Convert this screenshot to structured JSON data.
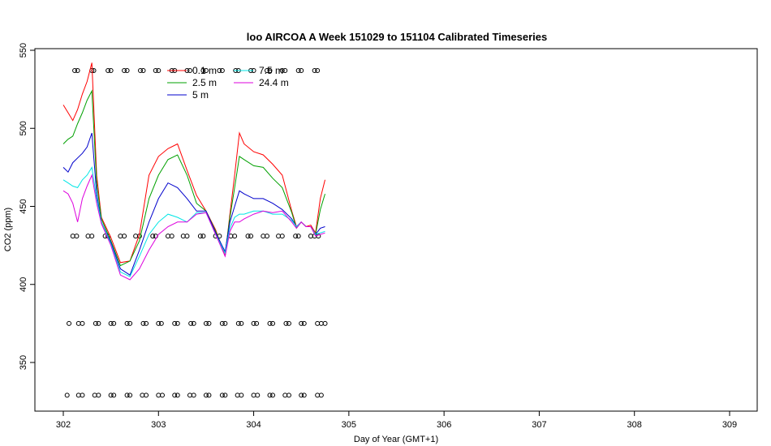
{
  "chart_data": {
    "type": "line",
    "title": "loo AIRCOA A  Week 151029 to 151104  Calibrated Timeseries",
    "xlabel": "Day of Year (GMT+1)",
    "ylabel": "CO2 (ppm)",
    "xlim": [
      301.8,
      309.3
    ],
    "ylim": [
      320,
      552
    ],
    "x_ticks": [
      302,
      303,
      304,
      305,
      306,
      307,
      308,
      309
    ],
    "y_ticks": [
      350,
      400,
      450,
      500,
      550
    ],
    "grid": false,
    "legend_position": "top-left",
    "series": [
      {
        "name": "0.1 m",
        "color": "#ff0000",
        "points": [
          [
            302.0,
            515
          ],
          [
            302.05,
            510
          ],
          [
            302.1,
            505
          ],
          [
            302.15,
            512
          ],
          [
            302.2,
            522
          ],
          [
            302.25,
            530
          ],
          [
            302.3,
            542
          ],
          [
            302.35,
            470
          ],
          [
            302.4,
            443
          ],
          [
            302.5,
            430
          ],
          [
            302.6,
            414
          ],
          [
            302.7,
            415
          ],
          [
            302.8,
            432
          ],
          [
            302.9,
            470
          ],
          [
            303.0,
            482
          ],
          [
            303.1,
            487
          ],
          [
            303.2,
            490
          ],
          [
            303.3,
            473
          ],
          [
            303.4,
            457
          ],
          [
            303.5,
            447
          ],
          [
            303.6,
            435
          ],
          [
            303.7,
            418
          ],
          [
            303.75,
            445
          ],
          [
            303.8,
            470
          ],
          [
            303.85,
            497
          ],
          [
            303.9,
            490
          ],
          [
            304.0,
            485
          ],
          [
            304.1,
            483
          ],
          [
            304.2,
            477
          ],
          [
            304.3,
            470
          ],
          [
            304.4,
            447
          ],
          [
            304.45,
            437
          ],
          [
            304.5,
            440
          ],
          [
            304.55,
            437
          ],
          [
            304.6,
            438
          ],
          [
            304.65,
            433
          ],
          [
            304.7,
            455
          ],
          [
            304.75,
            467
          ]
        ]
      },
      {
        "name": "2.5 m",
        "color": "#00a000",
        "points": [
          [
            302.0,
            490
          ],
          [
            302.05,
            493
          ],
          [
            302.1,
            495
          ],
          [
            302.15,
            503
          ],
          [
            302.2,
            510
          ],
          [
            302.25,
            518
          ],
          [
            302.3,
            524
          ],
          [
            302.35,
            465
          ],
          [
            302.4,
            442
          ],
          [
            302.5,
            428
          ],
          [
            302.6,
            412
          ],
          [
            302.7,
            415
          ],
          [
            302.8,
            428
          ],
          [
            302.9,
            455
          ],
          [
            303.0,
            470
          ],
          [
            303.1,
            480
          ],
          [
            303.2,
            483
          ],
          [
            303.3,
            470
          ],
          [
            303.4,
            452
          ],
          [
            303.5,
            447
          ],
          [
            303.6,
            434
          ],
          [
            303.7,
            420
          ],
          [
            303.75,
            443
          ],
          [
            303.8,
            462
          ],
          [
            303.85,
            482
          ],
          [
            303.9,
            480
          ],
          [
            304.0,
            476
          ],
          [
            304.1,
            475
          ],
          [
            304.2,
            468
          ],
          [
            304.3,
            462
          ],
          [
            304.4,
            446
          ],
          [
            304.45,
            436
          ],
          [
            304.5,
            440
          ],
          [
            304.55,
            437
          ],
          [
            304.6,
            437
          ],
          [
            304.65,
            432
          ],
          [
            304.7,
            448
          ],
          [
            304.75,
            458
          ]
        ]
      },
      {
        "name": "5 m",
        "color": "#0000cc",
        "points": [
          [
            302.0,
            475
          ],
          [
            302.05,
            472
          ],
          [
            302.1,
            478
          ],
          [
            302.15,
            481
          ],
          [
            302.2,
            484
          ],
          [
            302.25,
            488
          ],
          [
            302.3,
            497
          ],
          [
            302.35,
            458
          ],
          [
            302.4,
            440
          ],
          [
            302.5,
            427
          ],
          [
            302.6,
            410
          ],
          [
            302.7,
            406
          ],
          [
            302.8,
            422
          ],
          [
            302.9,
            440
          ],
          [
            303.0,
            455
          ],
          [
            303.1,
            465
          ],
          [
            303.2,
            462
          ],
          [
            303.3,
            455
          ],
          [
            303.4,
            447
          ],
          [
            303.5,
            447
          ],
          [
            303.6,
            433
          ],
          [
            303.7,
            421
          ],
          [
            303.75,
            440
          ],
          [
            303.8,
            450
          ],
          [
            303.85,
            460
          ],
          [
            303.9,
            458
          ],
          [
            304.0,
            455
          ],
          [
            304.1,
            455
          ],
          [
            304.2,
            452
          ],
          [
            304.3,
            448
          ],
          [
            304.4,
            442
          ],
          [
            304.45,
            437
          ],
          [
            304.5,
            440
          ],
          [
            304.55,
            437
          ],
          [
            304.6,
            437
          ],
          [
            304.65,
            432
          ],
          [
            304.7,
            436
          ],
          [
            304.75,
            437
          ]
        ]
      },
      {
        "name": "7.5 m",
        "color": "#00e5e5",
        "points": [
          [
            302.0,
            467
          ],
          [
            302.05,
            465
          ],
          [
            302.1,
            463
          ],
          [
            302.15,
            462
          ],
          [
            302.2,
            467
          ],
          [
            302.25,
            470
          ],
          [
            302.3,
            475
          ],
          [
            302.35,
            455
          ],
          [
            302.4,
            440
          ],
          [
            302.5,
            426
          ],
          [
            302.6,
            408
          ],
          [
            302.7,
            405
          ],
          [
            302.8,
            418
          ],
          [
            302.9,
            432
          ],
          [
            303.0,
            440
          ],
          [
            303.1,
            445
          ],
          [
            303.2,
            443
          ],
          [
            303.3,
            440
          ],
          [
            303.4,
            446
          ],
          [
            303.5,
            446
          ],
          [
            303.6,
            432
          ],
          [
            303.7,
            420
          ],
          [
            303.75,
            436
          ],
          [
            303.8,
            443
          ],
          [
            303.85,
            445
          ],
          [
            303.9,
            445
          ],
          [
            304.0,
            447
          ],
          [
            304.1,
            447
          ],
          [
            304.2,
            445
          ],
          [
            304.3,
            445
          ],
          [
            304.4,
            441
          ],
          [
            304.45,
            437
          ],
          [
            304.5,
            440
          ],
          [
            304.55,
            437
          ],
          [
            304.6,
            437
          ],
          [
            304.65,
            432
          ],
          [
            304.7,
            433
          ],
          [
            304.75,
            434
          ]
        ]
      },
      {
        "name": "24.4 m",
        "color": "#dd00dd",
        "points": [
          [
            302.0,
            460
          ],
          [
            302.05,
            458
          ],
          [
            302.1,
            452
          ],
          [
            302.15,
            440
          ],
          [
            302.2,
            455
          ],
          [
            302.25,
            463
          ],
          [
            302.3,
            470
          ],
          [
            302.35,
            452
          ],
          [
            302.4,
            439
          ],
          [
            302.5,
            425
          ],
          [
            302.6,
            406
          ],
          [
            302.7,
            403
          ],
          [
            302.8,
            410
          ],
          [
            302.9,
            422
          ],
          [
            303.0,
            432
          ],
          [
            303.1,
            437
          ],
          [
            303.2,
            440
          ],
          [
            303.3,
            440
          ],
          [
            303.4,
            445
          ],
          [
            303.5,
            446
          ],
          [
            303.6,
            432
          ],
          [
            303.7,
            418
          ],
          [
            303.75,
            434
          ],
          [
            303.8,
            440
          ],
          [
            303.85,
            440
          ],
          [
            303.9,
            442
          ],
          [
            304.0,
            445
          ],
          [
            304.1,
            447
          ],
          [
            304.2,
            446
          ],
          [
            304.3,
            447
          ],
          [
            304.4,
            440
          ],
          [
            304.45,
            436
          ],
          [
            304.5,
            440
          ],
          [
            304.55,
            437
          ],
          [
            304.6,
            437
          ],
          [
            304.65,
            431
          ],
          [
            304.7,
            432
          ],
          [
            304.75,
            433
          ]
        ]
      }
    ],
    "flag_points": [
      {
        "y": 537,
        "x": [
          302.12,
          302.15,
          302.3,
          302.32,
          302.47,
          302.5,
          302.64,
          302.67,
          302.81,
          302.84,
          302.97,
          303.0,
          303.14,
          303.17,
          303.3,
          303.33,
          303.47,
          303.5,
          303.64,
          303.67,
          303.81,
          303.84,
          303.97,
          304.0,
          304.14,
          304.17,
          304.3,
          304.33,
          304.47,
          304.5,
          304.64,
          304.67
        ]
      },
      {
        "y": 431,
        "x": [
          302.1,
          302.14,
          302.26,
          302.3,
          302.44,
          302.47,
          302.6,
          302.64,
          302.76,
          302.8,
          302.94,
          302.97,
          303.1,
          303.14,
          303.26,
          303.3,
          303.44,
          303.47,
          303.6,
          303.64,
          303.76,
          303.8,
          303.94,
          303.97,
          304.1,
          304.14,
          304.26,
          304.3,
          304.44,
          304.47,
          304.6,
          304.64,
          304.68
        ]
      },
      {
        "y": 375,
        "x": [
          302.06,
          302.16,
          302.2,
          302.34,
          302.37,
          302.5,
          302.53,
          302.67,
          302.7,
          302.84,
          302.87,
          303.0,
          303.03,
          303.17,
          303.2,
          303.34,
          303.37,
          303.5,
          303.53,
          303.67,
          303.7,
          303.84,
          303.87,
          304.0,
          304.03,
          304.17,
          304.2,
          304.34,
          304.37,
          304.5,
          304.53,
          304.67,
          304.71,
          304.75
        ]
      },
      {
        "y": 329,
        "x": [
          302.04,
          302.16,
          302.2,
          302.33,
          302.37,
          302.5,
          302.53,
          302.67,
          302.7,
          302.83,
          302.87,
          303.0,
          303.04,
          303.17,
          303.2,
          303.33,
          303.37,
          303.5,
          303.53,
          303.67,
          303.7,
          303.83,
          303.87,
          304.0,
          304.04,
          304.17,
          304.2,
          304.33,
          304.37,
          304.5,
          304.53,
          304.67,
          304.71
        ]
      }
    ]
  }
}
